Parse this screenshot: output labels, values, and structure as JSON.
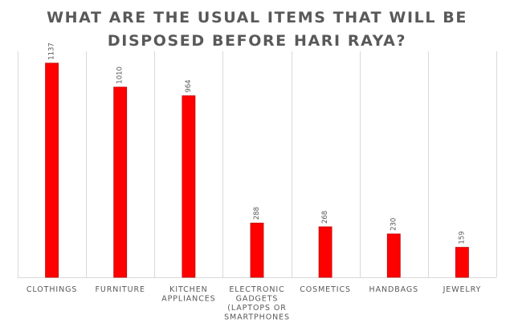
{
  "chart_data": {
    "type": "bar",
    "title": "WHAT ARE THE USUAL ITEMS THAT WILL BE\nDISPOSED BEFORE HARI RAYA?",
    "categories": [
      [
        "CLOTHINGS"
      ],
      [
        "FURNITURE"
      ],
      [
        "KITCHEN",
        "APPLIANCES"
      ],
      [
        "ELECTRONIC",
        "GADGETS",
        "(LAPTOPS OR",
        "SMARTPHONES"
      ],
      [
        "COSMETICS"
      ],
      [
        "HANDBAGS"
      ],
      [
        "JEWELRY"
      ]
    ],
    "values": [
      1137,
      1010,
      964,
      288,
      268,
      230,
      159
    ],
    "xlabel": "",
    "ylabel": "",
    "ylim": [
      0,
      1200
    ],
    "grid": "vertical category separators",
    "legend": "none",
    "colors": {
      "bar": "#ff0000",
      "bar_edge": "#c00000",
      "gridline": "#d9d9d9",
      "text": "#595959"
    }
  }
}
